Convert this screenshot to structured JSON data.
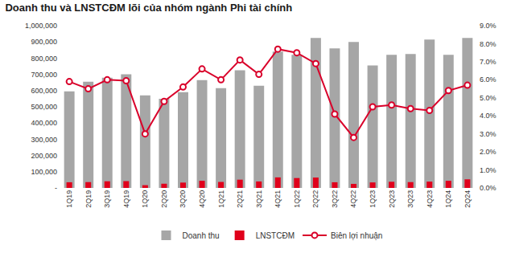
{
  "chart_data": {
    "type": "bar",
    "title": "Doanh thu và LNSTCĐM lõi của nhóm ngành Phi tài chính",
    "categories": [
      "1Q19",
      "2Q19",
      "3Q19",
      "4Q19",
      "1Q20",
      "2Q20",
      "3Q20",
      "4Q20",
      "1Q21",
      "2Q21",
      "3Q21",
      "4Q21",
      "1Q22",
      "2Q22",
      "3Q22",
      "4Q22",
      "1Q23",
      "2Q23",
      "3Q23",
      "4Q23",
      "1Q24",
      "2Q24"
    ],
    "series": [
      {
        "name": "Doanh thu",
        "type": "bar",
        "color": "#a6a6a6",
        "values": [
          595000,
          655000,
          680000,
          700000,
          570000,
          550000,
          590000,
          665000,
          615000,
          725000,
          630000,
          840000,
          820000,
          925000,
          860000,
          900000,
          755000,
          820000,
          825000,
          915000,
          820000,
          925000
        ]
      },
      {
        "name": "LNSTCĐM",
        "type": "bar",
        "color": "#e0001b",
        "values": [
          35000,
          36000,
          41000,
          42000,
          17000,
          26000,
          33000,
          44000,
          37000,
          51000,
          40000,
          65000,
          61000,
          64000,
          35000,
          25000,
          34000,
          38000,
          36000,
          39000,
          44000,
          53000
        ]
      },
      {
        "name": "Biên lợi nhuận",
        "type": "line",
        "axis": "y2",
        "color": "#d9002a",
        "marker": "circle",
        "values": [
          5.9,
          5.5,
          6.0,
          5.95,
          3.0,
          4.8,
          5.6,
          6.6,
          6.0,
          7.1,
          6.3,
          7.7,
          7.5,
          6.9,
          4.1,
          2.8,
          4.5,
          4.6,
          4.4,
          4.3,
          5.4,
          5.7
        ]
      }
    ],
    "ylim": [
      0,
      1000000
    ],
    "yticks": [
      {
        "value": 0,
        "label": "-"
      },
      {
        "value": 100000,
        "label": "100,000"
      },
      {
        "value": 200000,
        "label": "200,000"
      },
      {
        "value": 300000,
        "label": "300,000"
      },
      {
        "value": 400000,
        "label": "400,000"
      },
      {
        "value": 500000,
        "label": "500,000"
      },
      {
        "value": 600000,
        "label": "600,000"
      },
      {
        "value": 700000,
        "label": "700,000"
      },
      {
        "value": 800000,
        "label": "800,000"
      },
      {
        "value": 900000,
        "label": "900,000"
      },
      {
        "value": 1000000,
        "label": "1,000,000"
      }
    ],
    "y2lim": [
      0,
      9
    ],
    "y2ticks": [
      {
        "value": 0,
        "label": "0.0%"
      },
      {
        "value": 1,
        "label": "1.0%"
      },
      {
        "value": 2,
        "label": "2.0%"
      },
      {
        "value": 3,
        "label": "3.0%"
      },
      {
        "value": 4,
        "label": "4.0%"
      },
      {
        "value": 5,
        "label": "5.0%"
      },
      {
        "value": 6,
        "label": "6.0%"
      },
      {
        "value": 7,
        "label": "7.0%"
      },
      {
        "value": 8,
        "label": "8.0%"
      },
      {
        "value": 9,
        "label": "9.0%"
      }
    ],
    "grid": false,
    "legend": "bottom"
  }
}
